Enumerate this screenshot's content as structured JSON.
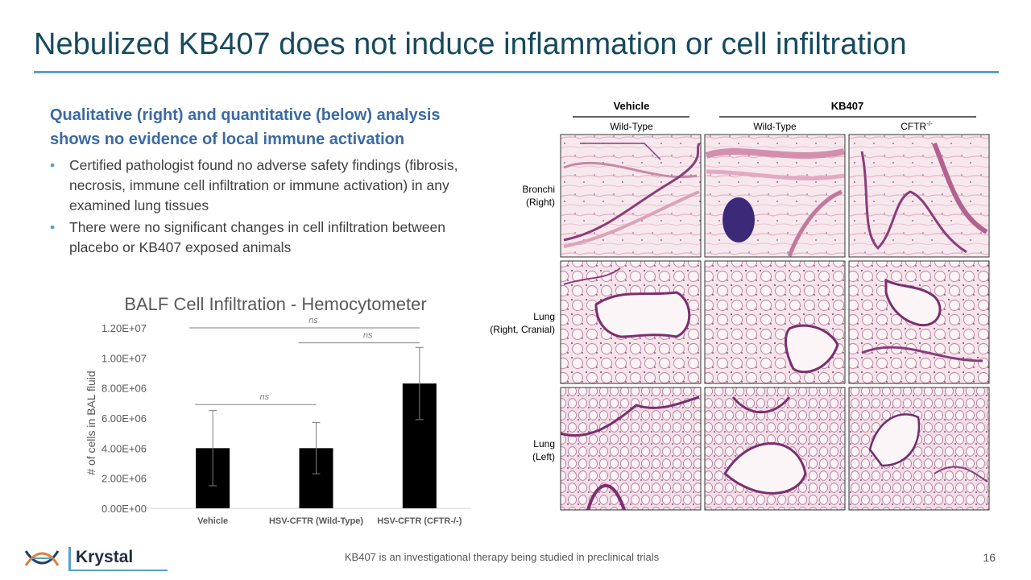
{
  "slide": {
    "title": "Nebulized KB407 does not induce inflammation or cell infiltration",
    "subheading": "Qualitative (right) and quantitative (below) analysis shows no evidence of local immune activation",
    "bullets": [
      "Certified pathologist found no adverse safety findings (fibrosis, necrosis, immune cell infiltration or immune activation) in any examined lung tissues",
      "There were no significant changes in cell infiltration between placebo or KB407 exposed animals"
    ],
    "bullet_glyph": "•",
    "footer_note": "KB407 is an investigational therapy being studied in preclinical trials",
    "page_number": "16",
    "logo_text": "Krystal"
  },
  "chart_data": {
    "type": "bar",
    "title": "BALF Cell Infiltration - Hemocytometer",
    "ylabel": "# of cells in BAL fluid",
    "xlabel": "",
    "categories": [
      "Vehicle",
      "HSV-CFTR (Wild-Type)",
      "HSV-CFTR (CFTR-/-)"
    ],
    "values": [
      4000000,
      4000000,
      8300000
    ],
    "error": [
      2500000,
      1700000,
      2400000
    ],
    "ylim": [
      0,
      12000000
    ],
    "yticks": [
      "0.00E+00",
      "2.00E+06",
      "4.00E+06",
      "6.00E+06",
      "8.00E+06",
      "1.00E+07",
      "1.20E+07"
    ],
    "ytick_values": [
      0,
      2000000,
      4000000,
      6000000,
      8000000,
      10000000,
      12000000
    ],
    "significance": [
      {
        "from": 0,
        "to": 2,
        "label": "ns",
        "level": 12000000
      },
      {
        "from": 1,
        "to": 2,
        "label": "ns",
        "level": 11000000
      },
      {
        "from": 0,
        "to": 1,
        "label": "ns",
        "level": 6900000
      }
    ],
    "bar_color": "#000000",
    "grid": false
  },
  "histology": {
    "group_headers": [
      "Vehicle",
      "KB407"
    ],
    "column_headers": [
      "Wild-Type",
      "Wild-Type",
      "CFTR"
    ],
    "cftr_superscript": "-/-",
    "row_labels": [
      [
        "Bronchi",
        "(Right)"
      ],
      [
        "Lung",
        "(Right, Cranial)"
      ],
      [
        "Lung",
        "(Left)"
      ]
    ]
  },
  "colors": {
    "title": "#164a5e",
    "accent": "#5aa0c8",
    "subheading": "#3b6aa3",
    "stain_pink": "#efc9d6",
    "stain_purple": "#7a2f6e"
  }
}
